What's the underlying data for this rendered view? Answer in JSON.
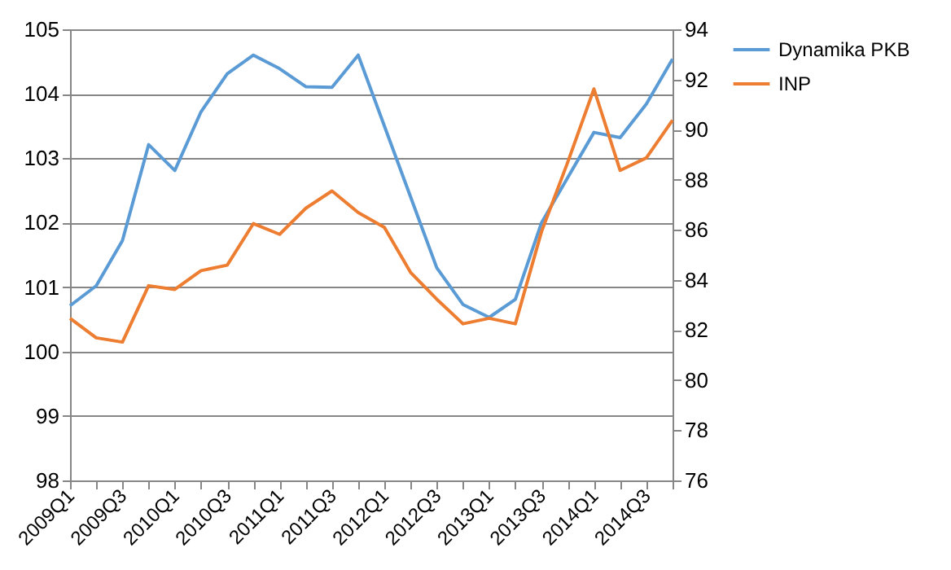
{
  "chart_data": {
    "type": "line",
    "categories": [
      "2009Q1",
      null,
      "2009Q3",
      null,
      "2010Q1",
      null,
      "2010Q3",
      null,
      "2011Q1",
      null,
      "2011Q3",
      null,
      "2012Q1",
      null,
      "2012Q3",
      null,
      "2013Q1",
      null,
      "2013Q3",
      null,
      "2014Q1",
      null,
      "2014Q3",
      null
    ],
    "series": [
      {
        "name": "Dynamika PKB",
        "color": "#5b9bd5",
        "values": [
          100.71,
          101.02,
          101.72,
          103.21,
          102.81,
          103.72,
          104.31,
          104.6,
          104.39,
          104.11,
          104.1,
          104.6,
          103.5,
          102.4,
          101.3,
          100.73,
          100.53,
          100.81,
          102.0,
          102.7,
          103.4,
          103.32,
          103.84,
          104.54
        ]
      },
      {
        "name": "INP",
        "color": "#ed7d31",
        "axis": "y2",
        "values": [
          82.47,
          81.69,
          81.52,
          83.77,
          83.62,
          84.37,
          84.59,
          86.25,
          85.82,
          86.86,
          87.55,
          86.69,
          86.1,
          84.3,
          83.23,
          82.25,
          82.47,
          82.25,
          85.93,
          88.7,
          91.62,
          88.37,
          88.87,
          90.37
        ]
      }
    ],
    "ylim": [
      98,
      105
    ],
    "yticks": [
      98,
      99,
      100,
      101,
      102,
      103,
      104,
      105
    ],
    "y2lim": [
      76,
      94
    ],
    "y2ticks": [
      76,
      78,
      80,
      82,
      84,
      86,
      88,
      90,
      92,
      94
    ],
    "grid": "y",
    "legend": "right",
    "marker": "none",
    "line_style": "solid"
  }
}
